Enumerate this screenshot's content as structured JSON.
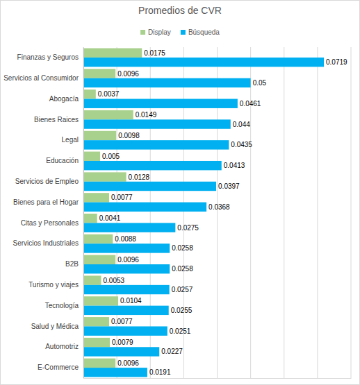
{
  "chart_data": {
    "type": "bar",
    "title": "Promedios de CVR",
    "orientation": "horizontal",
    "categories": [
      "Finanzas y Seguros",
      "Servicios al Consumidor",
      "Abogacía",
      "Bienes Raices",
      "Legal",
      "Educación",
      "Servicios de Empleo",
      "Bienes para el Hogar",
      "Citas y Personales",
      "Servicios Industriales",
      "B2B",
      "Turismo y viajes",
      "Tecnología",
      "Salud y Médica",
      "Automotriz",
      "E-Commerce"
    ],
    "series": [
      {
        "name": "Display",
        "color": "#a9d18e",
        "values": [
          0.0175,
          0.0096,
          0.0037,
          0.0149,
          0.0098,
          0.005,
          0.0128,
          0.0077,
          0.0041,
          0.0088,
          0.0096,
          0.0053,
          0.0104,
          0.0077,
          0.0079,
          0.0096
        ]
      },
      {
        "name": "Búsqueda",
        "color": "#00b0f0",
        "values": [
          0.0719,
          0.05,
          0.0461,
          0.044,
          0.0435,
          0.0413,
          0.0397,
          0.0368,
          0.0275,
          0.0258,
          0.0258,
          0.0257,
          0.0255,
          0.0251,
          0.0227,
          0.0191
        ]
      }
    ],
    "xlim": [
      0,
      0.08
    ],
    "xticks": [
      0,
      0.01,
      0.02,
      0.03,
      0.04,
      0.05,
      0.06,
      0.07,
      0.08
    ],
    "grid": true,
    "legend": "top",
    "data_labels": true,
    "tick_labels": "y"
  }
}
